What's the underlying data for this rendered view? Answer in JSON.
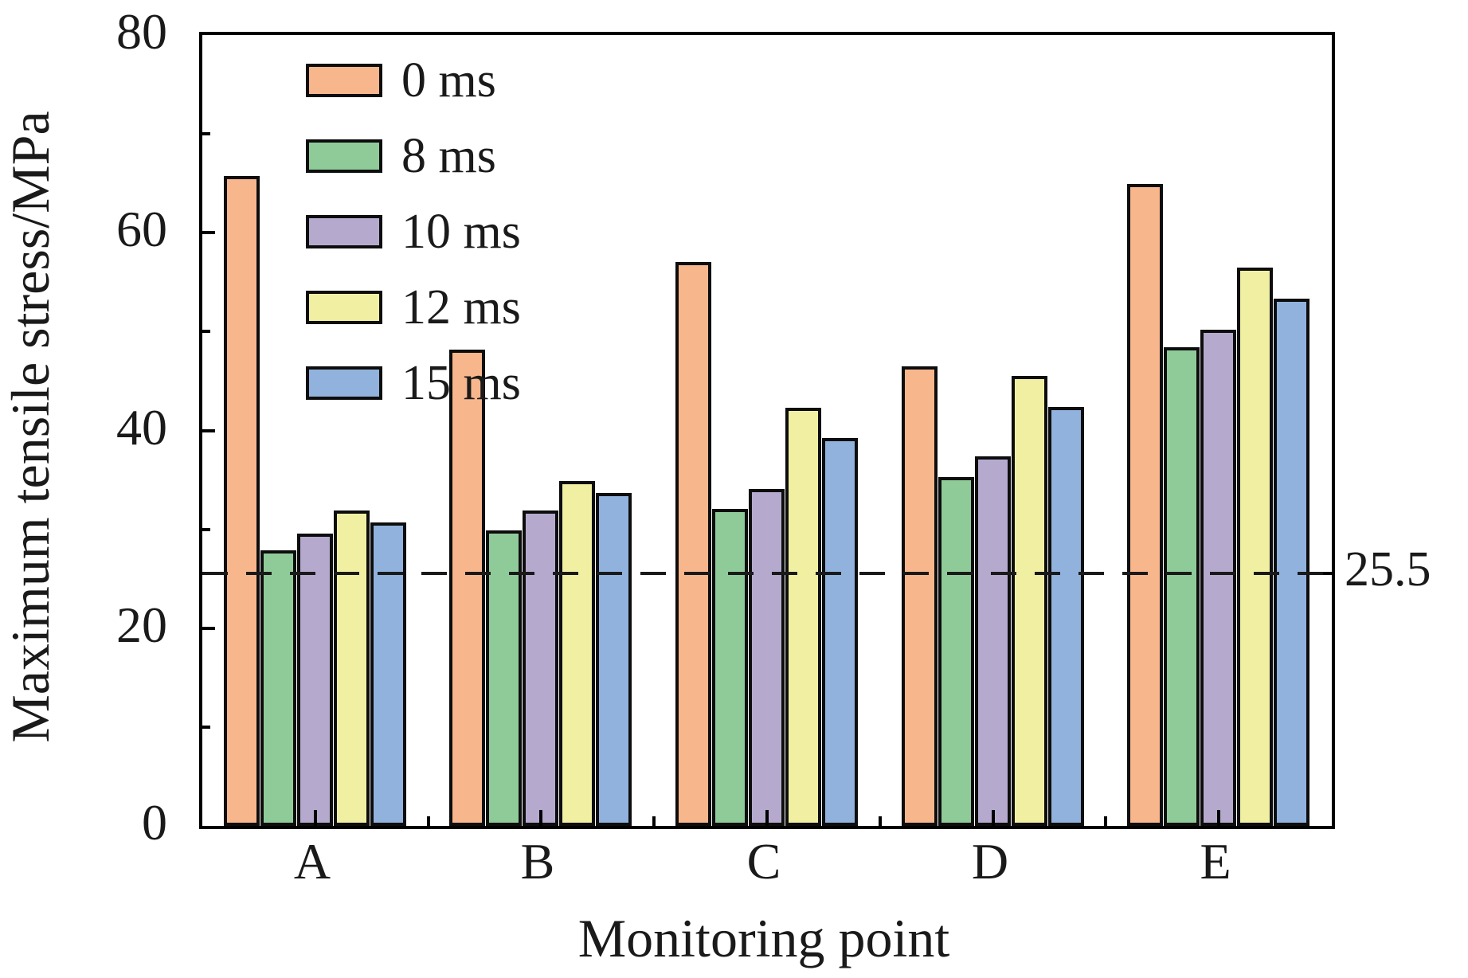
{
  "chart_data": {
    "type": "bar",
    "title": "",
    "xlabel": "Monitoring point",
    "ylabel": "Maximum tensile stress/MPa",
    "categories": [
      "A",
      "B",
      "C",
      "D",
      "E"
    ],
    "series": [
      {
        "name": "0 ms",
        "color": "#F8B68C",
        "values": [
          65.7,
          48.2,
          57.0,
          46.5,
          64.9
        ]
      },
      {
        "name": "8 ms",
        "color": "#8FCB99",
        "values": [
          27.9,
          29.9,
          32.1,
          35.3,
          48.4
        ]
      },
      {
        "name": "10 ms",
        "color": "#B5AACE",
        "values": [
          29.6,
          31.9,
          34.1,
          37.4,
          50.2
        ]
      },
      {
        "name": "12 ms",
        "color": "#F0EFA2",
        "values": [
          31.9,
          34.9,
          42.3,
          45.5,
          56.5
        ]
      },
      {
        "name": "15 ms",
        "color": "#90B2DD",
        "values": [
          30.7,
          33.7,
          39.2,
          42.4,
          53.3
        ]
      }
    ],
    "ylim": [
      0,
      80
    ],
    "yticks": [
      0,
      20,
      40,
      60,
      80
    ],
    "ytick_labels": [
      "0",
      "20",
      "40",
      "60",
      "80"
    ],
    "minor_yticks": [
      10,
      30,
      50,
      70
    ],
    "threshold": {
      "value": 25.5,
      "label": "25.5",
      "style": "dashed"
    },
    "legend_position": "upper-left-inside",
    "grid": false,
    "bar_edge_color": "#0d0d0d",
    "axis_color": "#000000"
  }
}
